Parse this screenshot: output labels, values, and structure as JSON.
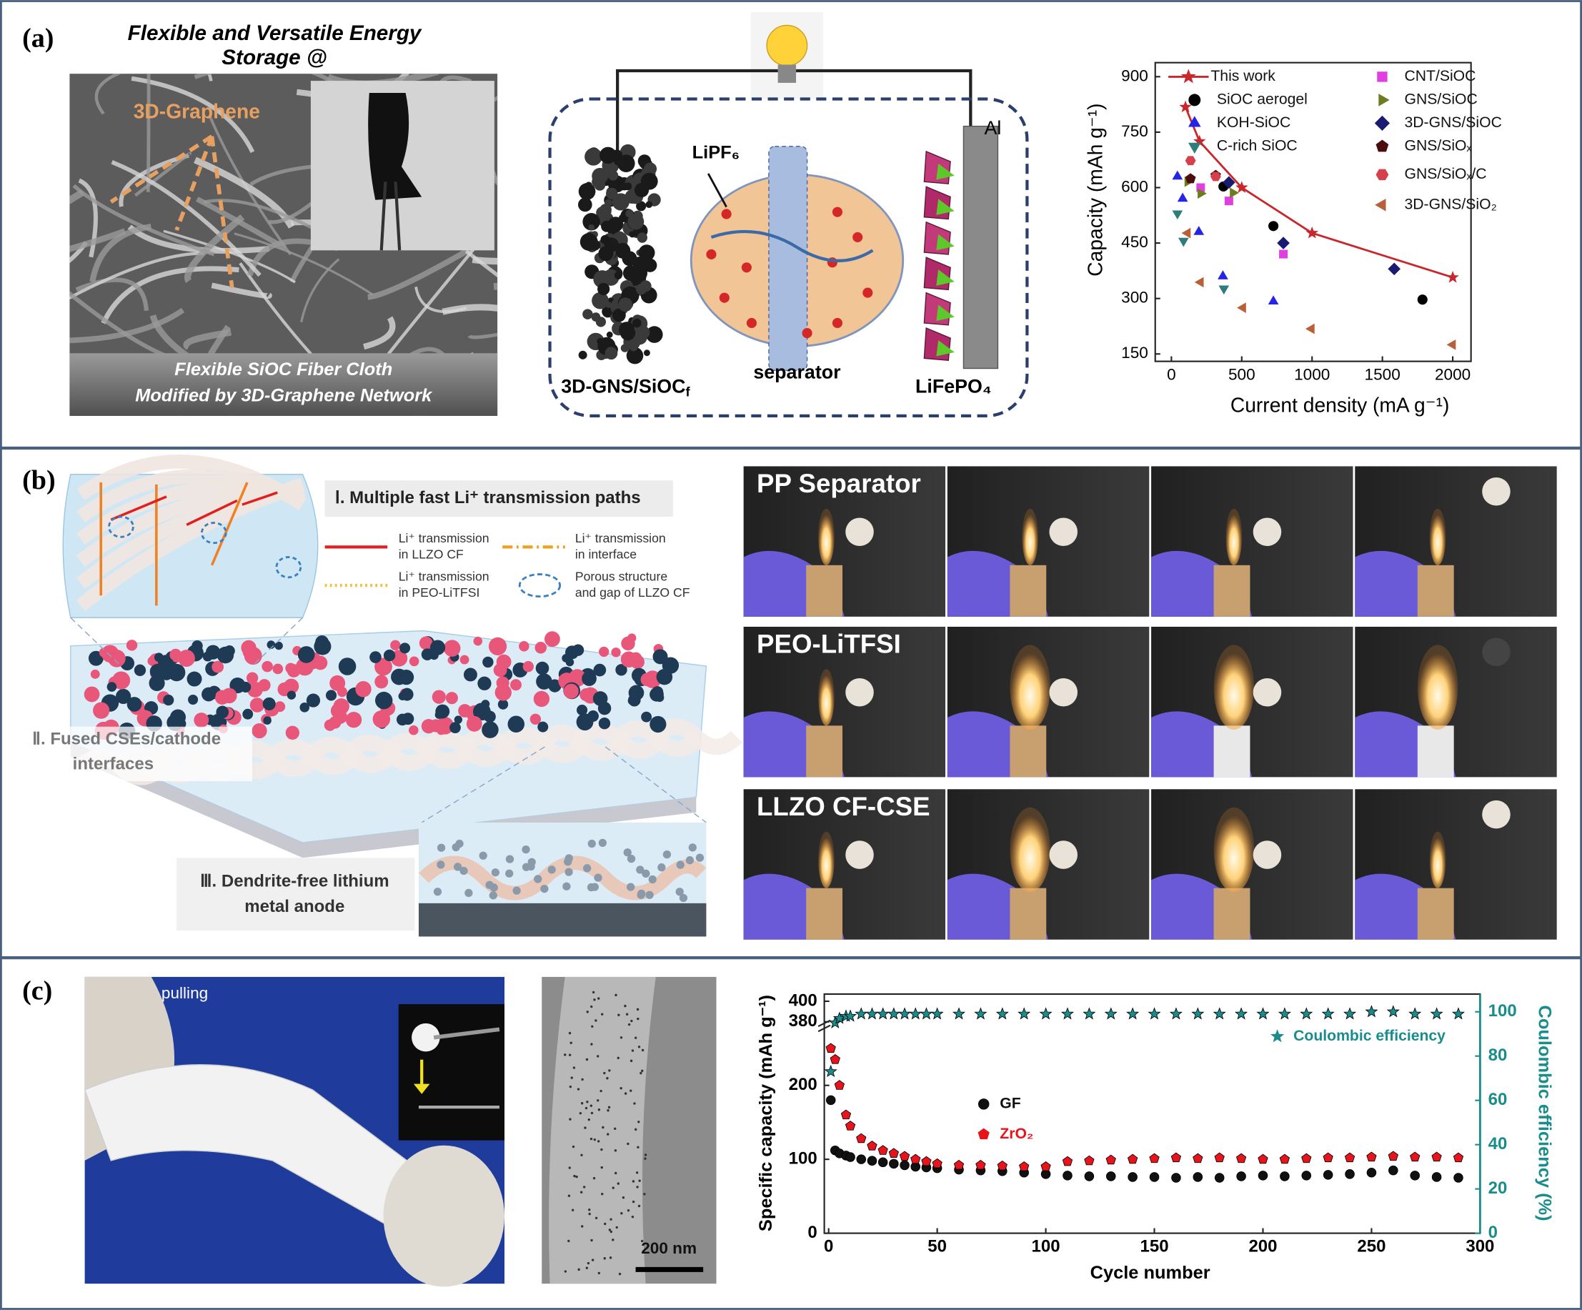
{
  "panel_a": {
    "label": "(a)",
    "title": [
      "Flexible and Versatile Energy",
      "Storage @"
    ],
    "sem_label": "3D-Graphene",
    "caption": [
      "Flexible SiOC Fiber Cloth",
      "Modified by 3D-Graphene Network"
    ],
    "electrolyte": "LiPF₆",
    "anode": {
      "text": "3D-GNS/SiOC",
      "sub": "f"
    },
    "separator": "separator",
    "cathode": "LiFePO₄",
    "collector": "Al"
  },
  "panel_b": {
    "label": "(b)",
    "heading": "Ⅰ. Multiple fast Li⁺ transmission paths",
    "legend": [
      [
        "Li⁺ transmission",
        "in LLZO CF"
      ],
      [
        "Li⁺ transmission",
        "in interface"
      ],
      [
        "Li⁺ transmission",
        "in PEO-LiTFSI"
      ],
      [
        "Porous structure",
        "and gap of LLZO CF"
      ]
    ],
    "feature_2": [
      "Ⅱ. Fused CSEs/cathode",
      "interfaces"
    ],
    "feature_3": [
      "Ⅲ. Dendrite-free lithium",
      "metal anode"
    ],
    "photo_rows": [
      "PP Separator",
      "PEO-LiTFSI",
      "LLZO CF-CSE"
    ]
  },
  "panel_c": {
    "label": "(c)",
    "photo_label": "pulling",
    "scale_bar": "200 nm"
  },
  "chart_data": [
    {
      "type": "scatter",
      "xlabel": "Current density (mA g⁻¹)",
      "ylabel": "Capacity (mAh g⁻¹)",
      "xlim": [
        -115,
        2130
      ],
      "ylim": [
        130,
        938
      ],
      "xticks": [
        0,
        500,
        1000,
        1500,
        2000
      ],
      "yticks": [
        150,
        300,
        450,
        600,
        750,
        900
      ],
      "grid": false,
      "series": [
        {
          "name": "This work",
          "color": "#c8282d",
          "marker": "star",
          "line": true,
          "x": [
            100,
            200,
            500,
            1000,
            2000
          ],
          "values": [
            818,
            725,
            600,
            477,
            357
          ]
        },
        {
          "name": "SiOC aerogel",
          "color": "#000000",
          "marker": "circle",
          "x": [
            370,
            725,
            1785
          ],
          "values": [
            603,
            496,
            297
          ]
        },
        {
          "name": "KOH-SiOC",
          "color": "#2424e6",
          "marker": "triangle-up",
          "x": [
            43,
            80,
            195,
            366,
            725
          ],
          "values": [
            630,
            570,
            480,
            360,
            292
          ]
        },
        {
          "name": "C-rich SiOC",
          "color": "#2e7d7a",
          "marker": "triangle-down",
          "x": [
            43,
            86,
            373
          ],
          "values": [
            530,
            456,
            327
          ]
        },
        {
          "name": "CNT/SiOC",
          "color": "#e040e0",
          "marker": "square",
          "x": [
            208,
            409,
            796
          ],
          "values": [
            600,
            564,
            420
          ]
        },
        {
          "name": "GNS/SiOC",
          "color": "#6b7d1e",
          "marker": "triangle-right",
          "x": [
            115,
            208,
            437
          ],
          "values": [
            616,
            584,
            586
          ]
        },
        {
          "name": "3D-GNS/SiOC",
          "color": "#1a1a70",
          "marker": "diamond",
          "x": [
            409,
            796,
            1584
          ],
          "values": [
            614,
            450,
            380
          ]
        },
        {
          "name": "GNS/SiOₓ",
          "color": "#4a0c0c",
          "marker": "pentagon",
          "x": [
            136,
            315
          ],
          "values": [
            624,
            633
          ]
        },
        {
          "name": "GNS/SiOₓ/C",
          "color": "#d6404a",
          "marker": "hexagon",
          "x": [
            136,
            315
          ],
          "values": [
            673,
            630
          ]
        },
        {
          "name": "3D-GNS/SiO₂",
          "color": "#b8603a",
          "marker": "triangle-left",
          "x": [
            115,
            208,
            509,
            996,
            2000
          ],
          "values": [
            477,
            344,
            275,
            218,
            175
          ]
        }
      ]
    },
    {
      "type": "scatter",
      "xlabel": "Cycle number",
      "ylabel": "Specific capacity (mAh g⁻¹)",
      "y2label": "Coulombic efficiency (%)",
      "xlim": [
        -2,
        300
      ],
      "ylim": [
        0,
        407
      ],
      "ybreak": [
        275,
        375
      ],
      "y2lim": [
        0,
        108
      ],
      "xticks": [
        0,
        50,
        100,
        150,
        200,
        250,
        300
      ],
      "yticks": [
        0,
        100,
        200,
        380,
        400
      ],
      "y2ticks": [
        0,
        20,
        40,
        60,
        80,
        100
      ],
      "grid": false,
      "x": [
        1,
        3,
        5,
        8,
        10,
        15,
        20,
        25,
        30,
        35,
        40,
        45,
        50,
        60,
        70,
        80,
        90,
        100,
        110,
        120,
        130,
        140,
        150,
        160,
        170,
        180,
        190,
        200,
        210,
        220,
        230,
        240,
        250,
        260,
        270,
        280,
        290
      ],
      "series": [
        {
          "name": "GF",
          "color": "#111111",
          "marker": "circle",
          "values": [
            180,
            112,
            108,
            105,
            103,
            100,
            98,
            96,
            94,
            92,
            90,
            89,
            88,
            86,
            85,
            84,
            82,
            80,
            78,
            77,
            77,
            76,
            76,
            75,
            76,
            75,
            77,
            78,
            77,
            78,
            79,
            80,
            82,
            85,
            78,
            76,
            75
          ]
        },
        {
          "name": "ZrO₂",
          "color": "#e8141c",
          "marker": "pentagon",
          "values": [
            250,
            235,
            200,
            160,
            145,
            128,
            118,
            112,
            108,
            104,
            100,
            97,
            94,
            92,
            92,
            91,
            90,
            90,
            97,
            98,
            99,
            100,
            101,
            102,
            101,
            102,
            101,
            100,
            100,
            101,
            102,
            102,
            103,
            104,
            103,
            103,
            102
          ]
        },
        {
          "name": "Coulombic efficiency",
          "color": "#1a8c8c",
          "marker": "star",
          "axis": "y2",
          "values": [
            73,
            95,
            97,
            98,
            98,
            99,
            99,
            99,
            99,
            99,
            99,
            99,
            99,
            99,
            99,
            99,
            99,
            99,
            99,
            99,
            99,
            99,
            99,
            99,
            99,
            99,
            99,
            99,
            99,
            99,
            99,
            99,
            100,
            100,
            99,
            99,
            99
          ]
        }
      ]
    }
  ]
}
